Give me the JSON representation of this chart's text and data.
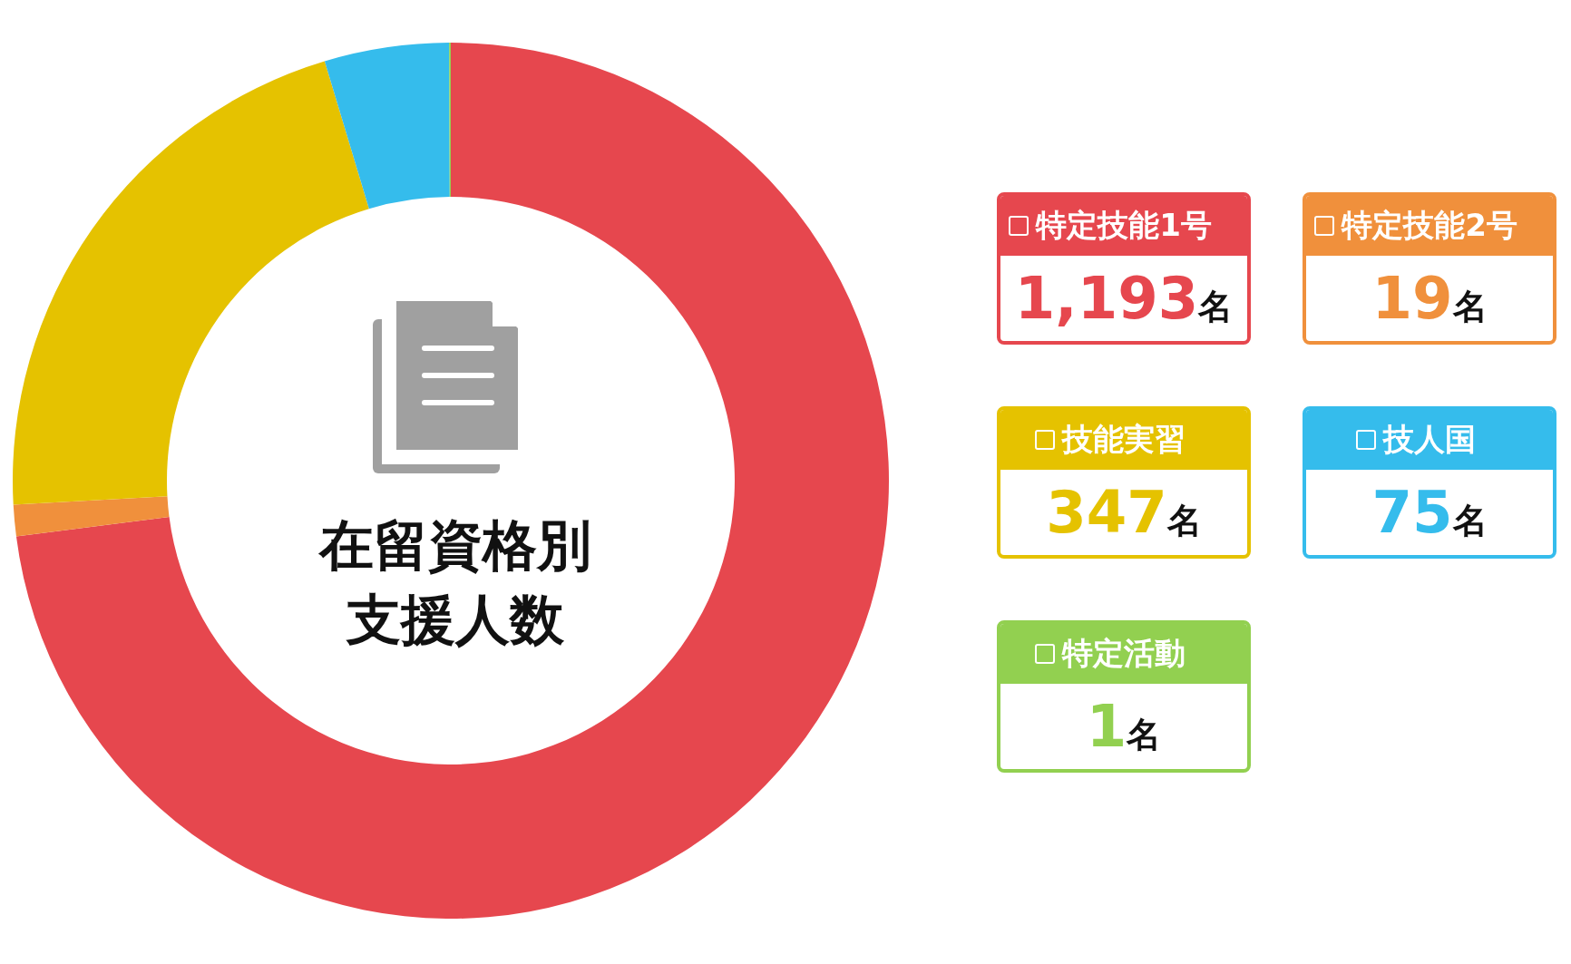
{
  "chart_data": {
    "type": "donut",
    "title": "在留資格別支援人数",
    "categories": [
      "特定技能1号",
      "特定技能2号",
      "技能実習",
      "技人国",
      "特定活動"
    ],
    "values": [
      1193,
      19,
      347,
      75,
      1
    ],
    "colors": [
      "#e6474e",
      "#f0903c",
      "#e5c200",
      "#35bcec",
      "#92d050"
    ],
    "value_labels": [
      "1,193名",
      "19名",
      "347名",
      "75名",
      "1名"
    ],
    "legend": "right"
  }
}
